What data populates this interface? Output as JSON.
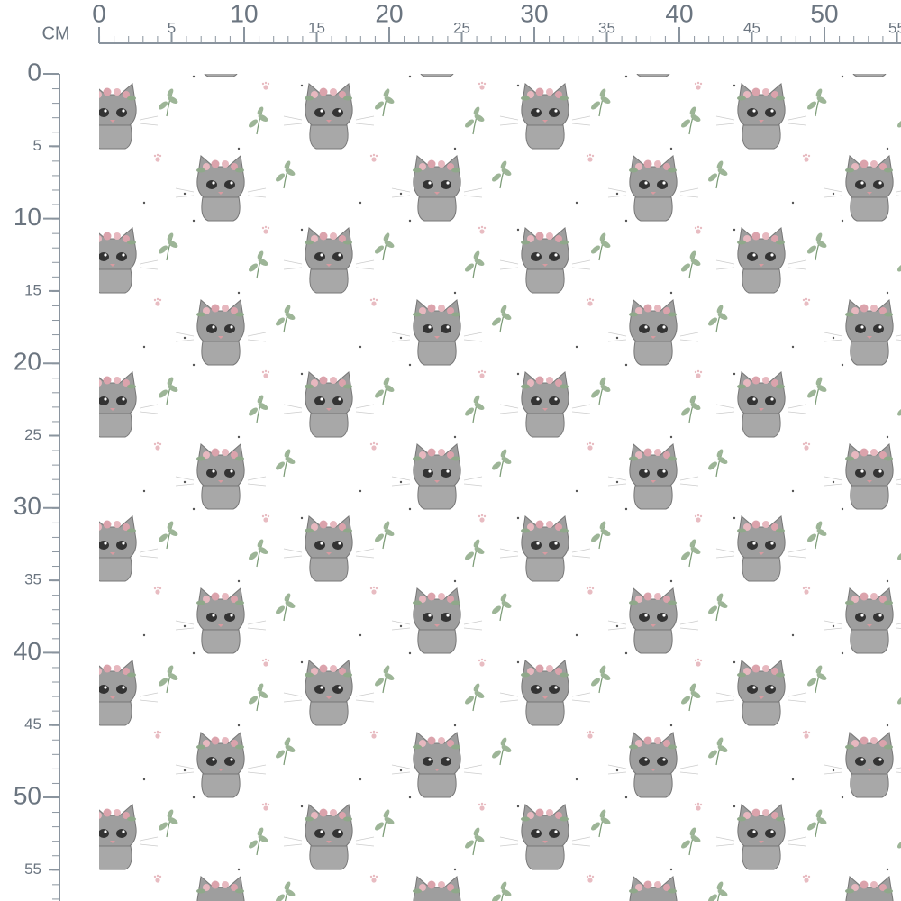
{
  "unit": "CM",
  "top_ruler": {
    "labels": [
      0,
      5,
      10,
      15,
      20,
      25,
      30,
      35,
      40,
      45,
      50,
      55
    ]
  },
  "left_ruler": {
    "labels": [
      0,
      5,
      10,
      15,
      20,
      25,
      30,
      35,
      40,
      45,
      50,
      55
    ]
  }
}
